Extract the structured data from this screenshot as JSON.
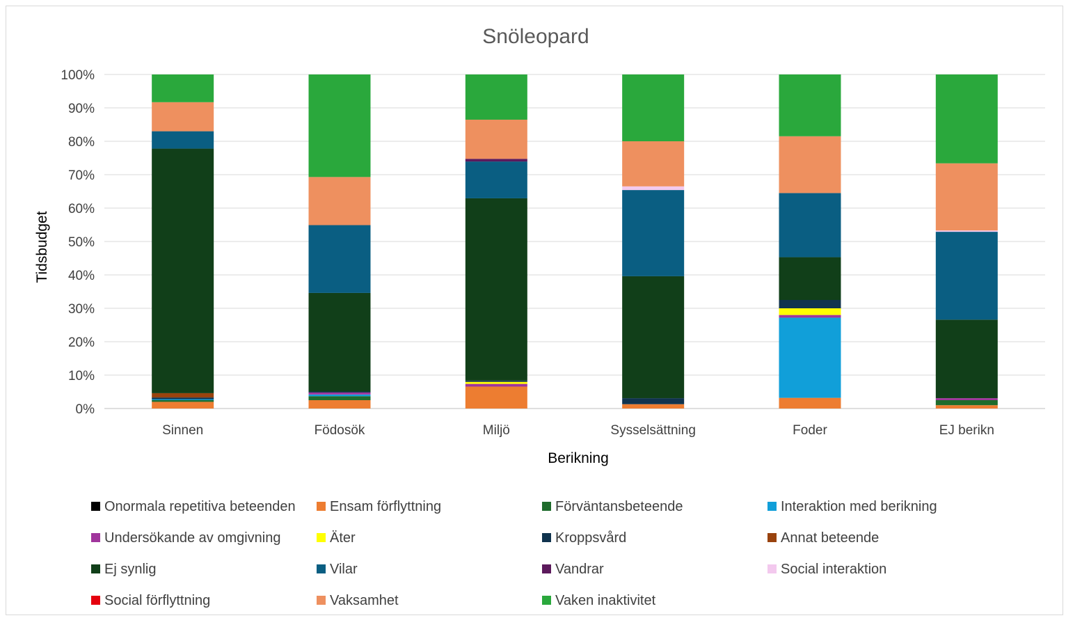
{
  "chart_data": {
    "type": "bar",
    "stacked": true,
    "percent": true,
    "title": "Snöleopard",
    "xlabel": "Berikning",
    "ylabel": "Tidsbudget",
    "ylim": [
      0,
      100
    ],
    "yticks": [
      "0%",
      "10%",
      "20%",
      "30%",
      "40%",
      "50%",
      "60%",
      "70%",
      "80%",
      "90%",
      "100%"
    ],
    "grid": true,
    "legend_position": "bottom",
    "categories": [
      "Sinnen",
      "Födosök",
      "Miljö",
      "Sysselsättning",
      "Foder",
      "EJ berikn"
    ],
    "series": [
      {
        "name": "Onormala repetitiva beteenden",
        "color": "#000000",
        "values": [
          0,
          0,
          0,
          0,
          0,
          0
        ]
      },
      {
        "name": "Ensam förflyttning",
        "color": "#ED7D31",
        "values": [
          2.0,
          2.5,
          6.5,
          1.3,
          3.2,
          1.0
        ]
      },
      {
        "name": "Förväntansbeteende",
        "color": "#1E6B2C",
        "values": [
          0.5,
          1.2,
          0,
          0,
          0,
          1.5
        ]
      },
      {
        "name": "Interaktion med berikning",
        "color": "#119FD9",
        "values": [
          0.3,
          0.5,
          0,
          0,
          24.0,
          0
        ]
      },
      {
        "name": "Undersökande av omgivning",
        "color": "#A0359C",
        "values": [
          0,
          0.6,
          0.8,
          0,
          0.8,
          0.6
        ]
      },
      {
        "name": "Äter",
        "color": "#FFFF00",
        "values": [
          0,
          0,
          0.6,
          0,
          2.0,
          0
        ]
      },
      {
        "name": "Kroppsvård",
        "color": "#10334E",
        "values": [
          0.5,
          0.3,
          0.4,
          1.8,
          2.5,
          0
        ]
      },
      {
        "name": "Annat beteende",
        "color": "#99430E",
        "values": [
          1.3,
          0,
          0,
          0,
          0,
          0
        ]
      },
      {
        "name": "Ej synlig",
        "color": "#113F19",
        "values": [
          73.2,
          29.5,
          54.0,
          36.5,
          12.8,
          23.5
        ]
      },
      {
        "name": "Vilar",
        "color": "#0A5E82",
        "values": [
          5.2,
          20.3,
          10.9,
          25.8,
          19.2,
          26.3
        ]
      },
      {
        "name": "Vandrar",
        "color": "#5C1A5C",
        "values": [
          0,
          0,
          0.8,
          0,
          0,
          0
        ]
      },
      {
        "name": "Social interaktion",
        "color": "#F3C9EE",
        "values": [
          0,
          0,
          0,
          1.1,
          0,
          0.4
        ]
      },
      {
        "name": "Social förflyttning",
        "color": "#E5000E",
        "values": [
          0,
          0,
          0,
          0,
          0,
          0
        ]
      },
      {
        "name": "Vaksamhet",
        "color": "#EE905F",
        "values": [
          8.7,
          14.4,
          11.6,
          13.5,
          17.0,
          20.1
        ]
      },
      {
        "name": "Vaken inaktivitet",
        "color": "#2AA83C",
        "values": [
          8.3,
          30.7,
          13.4,
          20.0,
          18.5,
          26.6
        ]
      }
    ]
  }
}
